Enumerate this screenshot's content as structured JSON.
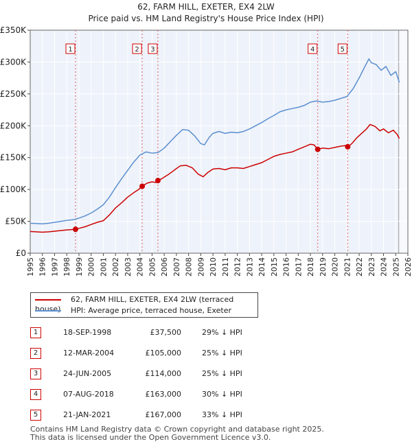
{
  "chart_data": {
    "type": "line",
    "title": "62, FARM HILL, EXETER, EX4 2LW",
    "subtitle": "Price paid vs. HM Land Registry's House Price Index (HPI)",
    "xlabel": "",
    "ylabel": "",
    "xlim": [
      1995,
      2026
    ],
    "ylim": [
      0,
      350000
    ],
    "x_ticks": [
      "1995",
      "1996",
      "1997",
      "1998",
      "1999",
      "2000",
      "2001",
      "2002",
      "2003",
      "2004",
      "2005",
      "2006",
      "2007",
      "2008",
      "2009",
      "2010",
      "2011",
      "2012",
      "2013",
      "2014",
      "2015",
      "2016",
      "2017",
      "2018",
      "2019",
      "2020",
      "2021",
      "2022",
      "2023",
      "2024",
      "2025",
      "2026"
    ],
    "y_ticks": [
      {
        "value": 0,
        "label": "£0"
      },
      {
        "value": 50000,
        "label": "£50K"
      },
      {
        "value": 100000,
        "label": "£100K"
      },
      {
        "value": 150000,
        "label": "£150K"
      },
      {
        "value": 200000,
        "label": "£200K"
      },
      {
        "value": 250000,
        "label": "£250K"
      },
      {
        "value": 300000,
        "label": "£300K"
      },
      {
        "value": 350000,
        "label": "£350K"
      }
    ],
    "grid": true,
    "shaded_after": 2025.25,
    "series": [
      {
        "name": "62, FARM HILL, EXETER, EX4 2LW (terraced house)",
        "color": "#cc0000",
        "x": [
          1995.0,
          1995.5,
          1996.0,
          1996.5,
          1997.0,
          1997.5,
          1998.0,
          1998.4,
          1998.72,
          1999.0,
          1999.5,
          2000.0,
          2000.5,
          2001.0,
          2001.5,
          2002.0,
          2002.5,
          2003.0,
          2003.5,
          2003.9,
          2004.2,
          2004.6,
          2005.0,
          2005.3,
          2005.48,
          2005.8,
          2006.3,
          2006.8,
          2007.3,
          2007.8,
          2008.3,
          2008.8,
          2009.2,
          2009.6,
          2010.0,
          2010.5,
          2011.0,
          2011.5,
          2012.0,
          2012.5,
          2013.0,
          2013.5,
          2014.0,
          2014.5,
          2015.0,
          2015.5,
          2016.0,
          2016.5,
          2017.0,
          2017.5,
          2018.0,
          2018.3,
          2018.6,
          2019.0,
          2019.5,
          2020.0,
          2020.5,
          2020.9,
          2021.06,
          2021.4,
          2021.8,
          2022.2,
          2022.6,
          2022.9,
          2023.3,
          2023.7,
          2024.0,
          2024.4,
          2024.8,
          2025.1,
          2025.3
        ],
        "values": [
          34000,
          33500,
          33000,
          33500,
          34500,
          35500,
          36500,
          37000,
          37500,
          39000,
          41500,
          45000,
          48500,
          51000,
          60000,
          71000,
          79000,
          88000,
          95000,
          100000,
          105000,
          110000,
          112000,
          111000,
          114000,
          117000,
          123000,
          130000,
          137000,
          138000,
          134000,
          124000,
          120000,
          127000,
          132000,
          133000,
          131000,
          134000,
          134000,
          133000,
          136000,
          139000,
          142000,
          147000,
          152000,
          155000,
          157000,
          159000,
          163000,
          167000,
          171000,
          170000,
          163000,
          165000,
          164000,
          166000,
          168000,
          169000,
          167000,
          172000,
          181000,
          188000,
          195000,
          202000,
          199000,
          192000,
          195000,
          189000,
          193000,
          187000,
          180000
        ]
      },
      {
        "name": "HPI: Average price, terraced house, Exeter",
        "color": "#5b8fd0",
        "x": [
          1995.0,
          1995.5,
          1996.0,
          1996.5,
          1997.0,
          1997.5,
          1998.0,
          1998.5,
          1999.0,
          1999.5,
          2000.0,
          2000.5,
          2001.0,
          2001.5,
          2002.0,
          2002.5,
          2003.0,
          2003.5,
          2004.0,
          2004.5,
          2005.0,
          2005.5,
          2006.0,
          2006.5,
          2007.0,
          2007.5,
          2008.0,
          2008.5,
          2009.0,
          2009.3,
          2009.7,
          2010.0,
          2010.5,
          2011.0,
          2011.5,
          2012.0,
          2012.5,
          2013.0,
          2013.5,
          2014.0,
          2014.5,
          2015.0,
          2015.5,
          2016.0,
          2016.5,
          2017.0,
          2017.5,
          2018.0,
          2018.5,
          2019.0,
          2019.5,
          2020.0,
          2020.5,
          2021.0,
          2021.5,
          2022.0,
          2022.5,
          2022.8,
          2023.0,
          2023.4,
          2023.8,
          2024.2,
          2024.6,
          2025.0,
          2025.3
        ],
        "values": [
          47000,
          46500,
          46000,
          47000,
          48500,
          50000,
          51500,
          52500,
          55000,
          58500,
          63000,
          69000,
          76000,
          88000,
          103000,
          117000,
          130000,
          143000,
          154000,
          159000,
          157000,
          158000,
          165000,
          175000,
          185000,
          194000,
          193000,
          184000,
          172000,
          170000,
          182000,
          188000,
          191000,
          188000,
          190000,
          189000,
          191000,
          195000,
          200000,
          205000,
          211000,
          216000,
          222000,
          225000,
          227000,
          229000,
          232000,
          237000,
          239000,
          237000,
          238000,
          240000,
          243000,
          246000,
          258000,
          275000,
          294000,
          305000,
          299000,
          296000,
          287000,
          293000,
          279000,
          285000,
          268000
        ]
      }
    ],
    "sale_markers": [
      {
        "id": "1",
        "x": 1998.72,
        "value": 37500
      },
      {
        "id": "2",
        "x": 2004.19,
        "value": 105000
      },
      {
        "id": "3",
        "x": 2005.48,
        "value": 114000
      },
      {
        "id": "4",
        "x": 2018.6,
        "value": 163000
      },
      {
        "id": "5",
        "x": 2021.06,
        "value": 167000
      }
    ]
  },
  "legend": {
    "items": [
      {
        "label": "62, FARM HILL, EXETER, EX4 2LW (terraced house)",
        "color": "#cc0000"
      },
      {
        "label": "HPI: Average price, terraced house, Exeter",
        "color": "#5b8fd0"
      }
    ]
  },
  "sales": [
    {
      "id": "1",
      "date": "18-SEP-1998",
      "price": "£37,500",
      "hpi": "29% ↓ HPI"
    },
    {
      "id": "2",
      "date": "12-MAR-2004",
      "price": "£105,000",
      "hpi": "25% ↓ HPI"
    },
    {
      "id": "3",
      "date": "24-JUN-2005",
      "price": "£114,000",
      "hpi": "25% ↓ HPI"
    },
    {
      "id": "4",
      "date": "07-AUG-2018",
      "price": "£163,000",
      "hpi": "30% ↓ HPI"
    },
    {
      "id": "5",
      "date": "21-JAN-2021",
      "price": "£167,000",
      "hpi": "33% ↓ HPI"
    }
  ],
  "footer": {
    "line1": "Contains HM Land Registry data © Crown copyright and database right 2025.",
    "line2": "This data is licensed under the Open Government Licence v3.0."
  }
}
